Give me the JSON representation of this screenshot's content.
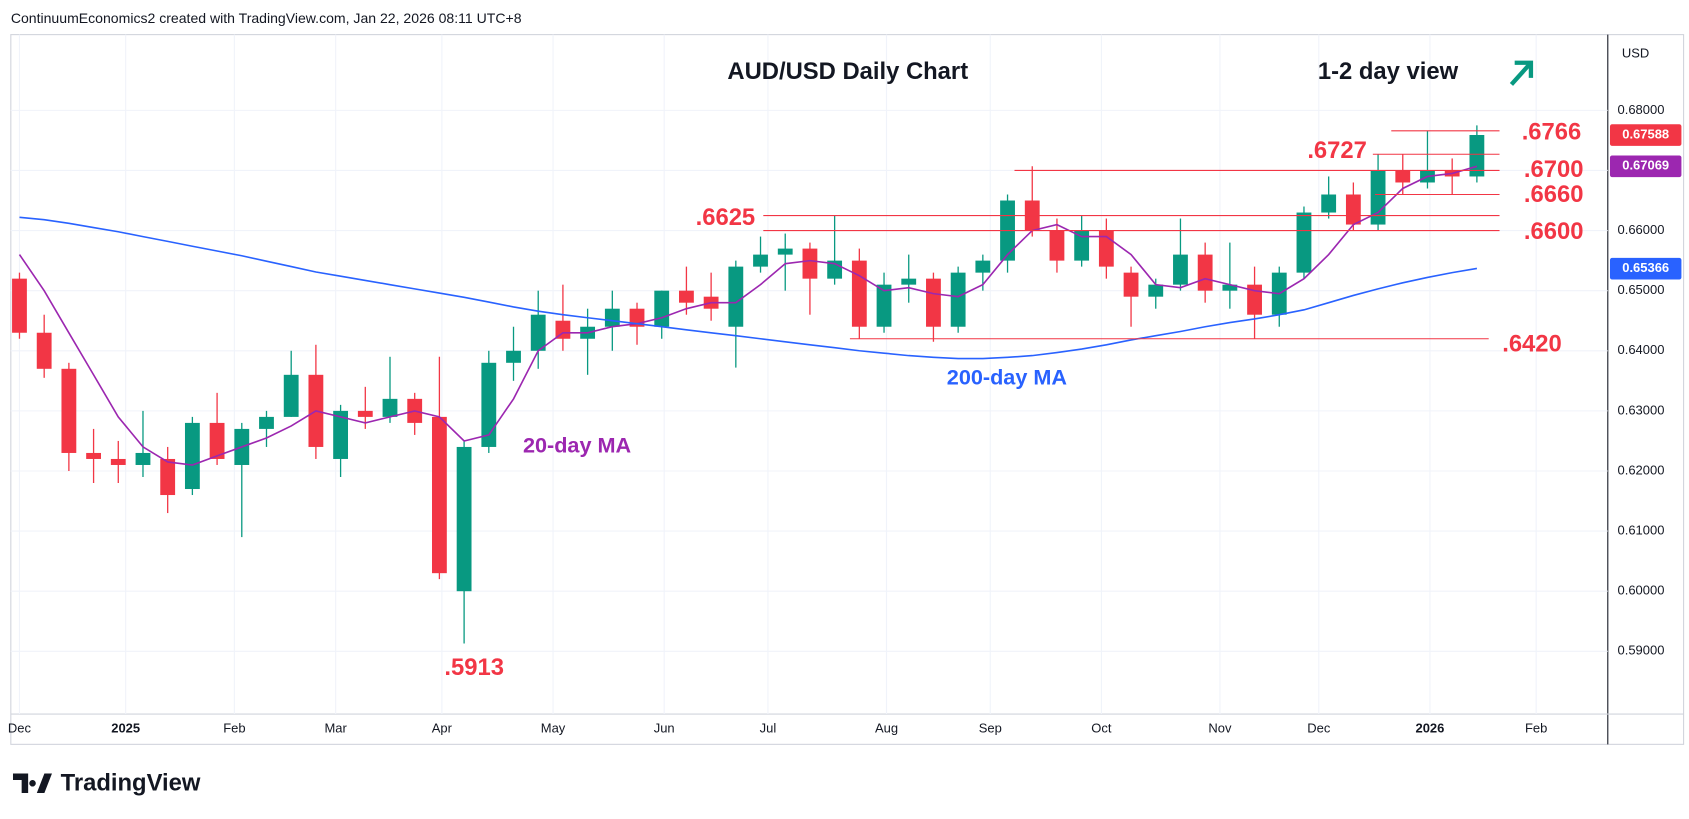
{
  "chart_data": {
    "type": "candlestick",
    "header": "ContinuumEconomics2 created with TradingView.com, Jan 22, 2026 08:11 UTC+8",
    "title": "AUD/USD Daily Chart",
    "subtitle": "1-2 day view",
    "currency": "USD",
    "brand": "TradingView",
    "grid": true,
    "up_color": "#089981",
    "down_color": "#f23645",
    "xlim": [
      -0.35,
      64.3
    ],
    "xticks": [
      {
        "value": 0,
        "label": "Dec"
      },
      {
        "value": 4.3,
        "label": "2025"
      },
      {
        "value": 8.7,
        "label": "Feb"
      },
      {
        "value": 12.8,
        "label": "Mar"
      },
      {
        "value": 17.1,
        "label": "Apr"
      },
      {
        "value": 21.6,
        "label": "May"
      },
      {
        "value": 26.1,
        "label": "Jun"
      },
      {
        "value": 30.3,
        "label": "Jul"
      },
      {
        "value": 35.1,
        "label": "Aug"
      },
      {
        "value": 39.3,
        "label": "Sep"
      },
      {
        "value": 43.8,
        "label": "Oct"
      },
      {
        "value": 48.6,
        "label": "Nov"
      },
      {
        "value": 52.6,
        "label": "Dec"
      },
      {
        "value": 57.1,
        "label": "2026"
      },
      {
        "value": 61.4,
        "label": "Feb"
      }
    ],
    "ylim": [
      0.57956,
      0.6926
    ],
    "yticks": [
      {
        "value": 0.59,
        "label": "0.59000"
      },
      {
        "value": 0.6,
        "label": "0.60000"
      },
      {
        "value": 0.61,
        "label": "0.61000"
      },
      {
        "value": 0.62,
        "label": "0.62000"
      },
      {
        "value": 0.63,
        "label": "0.63000"
      },
      {
        "value": 0.64,
        "label": "0.64000"
      },
      {
        "value": 0.65,
        "label": "0.65000"
      },
      {
        "value": 0.66,
        "label": "0.66000"
      },
      {
        "value": 0.67,
        "label": "0.67000"
      },
      {
        "value": 0.68,
        "label": "0.68000"
      }
    ],
    "candles": {
      "open": [
        0.652,
        0.643,
        0.637,
        0.623,
        0.622,
        0.621,
        0.622,
        0.617,
        0.628,
        0.621,
        0.627,
        0.629,
        0.636,
        0.622,
        0.63,
        0.629,
        0.632,
        0.629,
        0.6,
        0.624,
        0.638,
        0.64,
        0.645,
        0.642,
        0.644,
        0.647,
        0.644,
        0.65,
        0.649,
        0.644,
        0.654,
        0.656,
        0.657,
        0.652,
        0.655,
        0.644,
        0.651,
        0.652,
        0.644,
        0.653,
        0.655,
        0.665,
        0.66,
        0.655,
        0.66,
        0.653,
        0.649,
        0.651,
        0.656,
        0.65,
        0.651,
        0.646,
        0.653,
        0.663,
        0.666,
        0.661,
        0.67,
        0.668,
        0.67,
        0.669
      ],
      "high": [
        0.653,
        0.646,
        0.638,
        0.627,
        0.625,
        0.63,
        0.624,
        0.629,
        0.633,
        0.628,
        0.63,
        0.64,
        0.641,
        0.631,
        0.634,
        0.639,
        0.633,
        0.639,
        0.625,
        0.64,
        0.644,
        0.65,
        0.651,
        0.647,
        0.65,
        0.648,
        0.65,
        0.654,
        0.653,
        0.655,
        0.659,
        0.6595,
        0.658,
        0.6625,
        0.657,
        0.653,
        0.656,
        0.653,
        0.654,
        0.656,
        0.666,
        0.6707,
        0.662,
        0.6625,
        0.662,
        0.654,
        0.652,
        0.662,
        0.658,
        0.658,
        0.654,
        0.654,
        0.664,
        0.669,
        0.668,
        0.6727,
        0.6727,
        0.6766,
        0.672,
        0.6775
      ],
      "low": [
        0.642,
        0.6355,
        0.62,
        0.618,
        0.618,
        0.619,
        0.613,
        0.616,
        0.621,
        0.609,
        0.624,
        0.629,
        0.622,
        0.619,
        0.627,
        0.628,
        0.626,
        0.602,
        0.5913,
        0.623,
        0.635,
        0.637,
        0.64,
        0.636,
        0.64,
        0.641,
        0.642,
        0.646,
        0.645,
        0.6372,
        0.653,
        0.65,
        0.646,
        0.651,
        0.642,
        0.643,
        0.648,
        0.6415,
        0.643,
        0.65,
        0.653,
        0.659,
        0.653,
        0.654,
        0.652,
        0.644,
        0.647,
        0.65,
        0.648,
        0.647,
        0.642,
        0.644,
        0.652,
        0.662,
        0.66,
        0.66,
        0.666,
        0.667,
        0.666,
        0.668
      ],
      "close": [
        0.643,
        0.637,
        0.623,
        0.622,
        0.621,
        0.623,
        0.616,
        0.628,
        0.622,
        0.627,
        0.629,
        0.636,
        0.624,
        0.63,
        0.629,
        0.632,
        0.628,
        0.603,
        0.624,
        0.638,
        0.64,
        0.646,
        0.642,
        0.644,
        0.647,
        0.644,
        0.65,
        0.648,
        0.647,
        0.654,
        0.656,
        0.657,
        0.652,
        0.655,
        0.644,
        0.651,
        0.652,
        0.644,
        0.653,
        0.655,
        0.665,
        0.66,
        0.655,
        0.66,
        0.654,
        0.649,
        0.651,
        0.656,
        0.65,
        0.651,
        0.646,
        0.653,
        0.663,
        0.666,
        0.661,
        0.67,
        0.668,
        0.67,
        0.669,
        0.6759
      ]
    },
    "series": [
      {
        "name": "20-day MA",
        "color": "#9c27b0",
        "values": [
          0.656,
          0.65,
          0.643,
          0.636,
          0.629,
          0.624,
          0.6215,
          0.621,
          0.6225,
          0.624,
          0.6255,
          0.6275,
          0.63,
          0.629,
          0.628,
          0.629,
          0.63,
          0.629,
          0.625,
          0.626,
          0.632,
          0.64,
          0.643,
          0.643,
          0.644,
          0.6445,
          0.6455,
          0.647,
          0.648,
          0.648,
          0.651,
          0.6545,
          0.655,
          0.6545,
          0.6525,
          0.65,
          0.6505,
          0.6495,
          0.649,
          0.651,
          0.656,
          0.66,
          0.661,
          0.659,
          0.659,
          0.656,
          0.651,
          0.6505,
          0.652,
          0.651,
          0.65,
          0.6495,
          0.652,
          0.656,
          0.661,
          0.663,
          0.667,
          0.669,
          0.6695,
          0.6707
        ]
      },
      {
        "name": "200-day MA",
        "color": "#2962ff",
        "values": [
          0.6622,
          0.6618,
          0.6612,
          0.6605,
          0.6598,
          0.659,
          0.6582,
          0.6574,
          0.6566,
          0.6558,
          0.6549,
          0.654,
          0.6531,
          0.6524,
          0.6517,
          0.651,
          0.6503,
          0.6496,
          0.6489,
          0.6481,
          0.6473,
          0.6466,
          0.646,
          0.6455,
          0.645,
          0.6445,
          0.644,
          0.6435,
          0.643,
          0.6425,
          0.642,
          0.6415,
          0.641,
          0.6405,
          0.64,
          0.6396,
          0.6392,
          0.6389,
          0.6387,
          0.6387,
          0.6389,
          0.6392,
          0.6397,
          0.6403,
          0.641,
          0.6418,
          0.6425,
          0.6432,
          0.644,
          0.6447,
          0.6453,
          0.646,
          0.6468,
          0.648,
          0.6492,
          0.6503,
          0.6513,
          0.6522,
          0.653,
          0.6537
        ]
      }
    ],
    "levels": [
      {
        "value": 0.6766,
        "label": ".6766"
      },
      {
        "value": 0.6727,
        "label": ".6727"
      },
      {
        "value": 0.67,
        "label": ".6700"
      },
      {
        "value": 0.666,
        "label": ".6660"
      },
      {
        "value": 0.6625,
        "label": ".6625"
      },
      {
        "value": 0.66,
        "label": ".6600"
      },
      {
        "value": 0.642,
        "label": ".6420"
      },
      {
        "value": 0.5913,
        "label": ".5913"
      }
    ],
    "price_tags": [
      {
        "value": 0.67588,
        "label": "0.67588",
        "color": "#f23645"
      },
      {
        "value": 0.67069,
        "label": "0.67069",
        "color": "#9c27b0"
      },
      {
        "value": 0.65366,
        "label": "0.65366",
        "color": "#2962ff"
      }
    ]
  }
}
